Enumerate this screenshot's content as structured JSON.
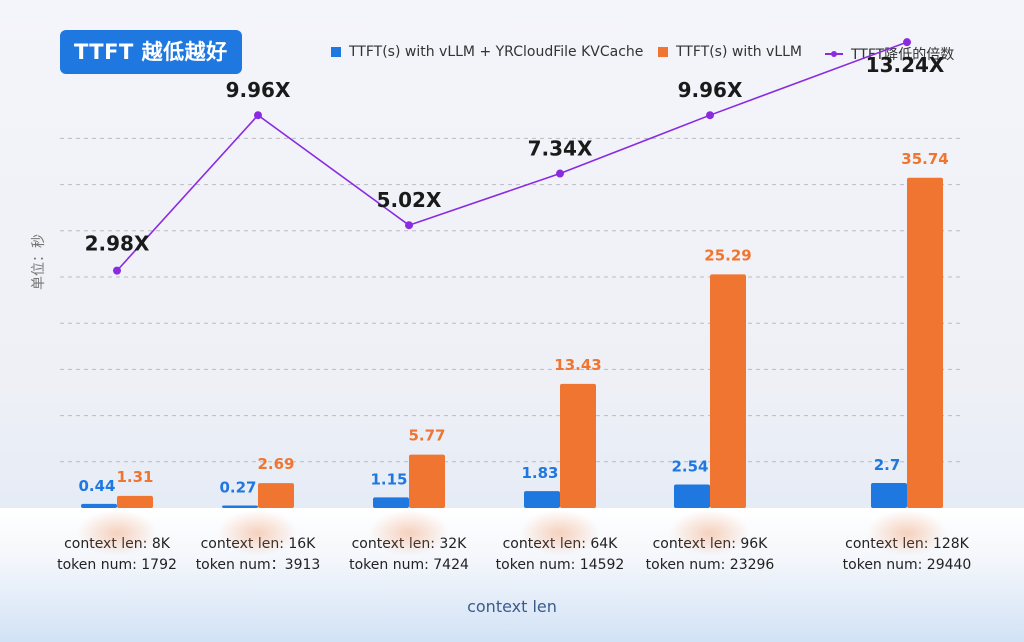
{
  "title": "TTFT 越低越好",
  "legend": {
    "series1": "TTFT(s) with vLLM + YRCloudFile KVCache",
    "series2": "TTFT(s) with vLLM",
    "series3": "TTFT降低的倍数"
  },
  "y_unit": "单位：秒",
  "x_axis_label": "context len",
  "colors": {
    "blue": "#1f78e0",
    "orange": "#ef7530",
    "purple": "#8a2be2",
    "title_bg": "#1f78e0"
  },
  "categories": [
    {
      "line1": "context len: 8K",
      "line2": "token num: 1792"
    },
    {
      "line1": "context len: 16K",
      "line2": "token num：3913"
    },
    {
      "line1": "context len: 32K",
      "line2": "token num: 7424"
    },
    {
      "line1": "context len: 64K",
      "line2": "token num: 14592"
    },
    {
      "line1": "context len: 96K",
      "line2": "token num: 23296"
    },
    {
      "line1": "context len: 128K",
      "line2": "token num: 29440"
    }
  ],
  "chart_data": {
    "type": "bar",
    "title": "TTFT 越低越好",
    "xlabel": "context len",
    "ylabel": "单位：秒",
    "categories": [
      "context len: 8K",
      "context len: 16K",
      "context len: 32K",
      "context len: 64K",
      "context len: 96K",
      "context len: 128K"
    ],
    "series": [
      {
        "name": "TTFT(s) with vLLM + YRCloudFile KVCache",
        "type": "bar",
        "values": [
          0.44,
          0.27,
          1.15,
          1.83,
          2.54,
          2.7
        ],
        "labels": [
          "0.44",
          "0.27",
          "1.15",
          "1.83",
          "2.54",
          "2.7"
        ]
      },
      {
        "name": "TTFT(s) with vLLM",
        "type": "bar",
        "values": [
          1.31,
          2.69,
          5.77,
          13.43,
          25.29,
          35.74
        ],
        "labels": [
          "1.31",
          "2.69",
          "5.77",
          "13.43",
          "25.29",
          "35.74"
        ]
      },
      {
        "name": "TTFT降低的倍数",
        "type": "line",
        "values": [
          2.98,
          9.96,
          5.02,
          7.34,
          9.96,
          13.24
        ],
        "labels": [
          "2.98X",
          "9.96X",
          "5.02X",
          "7.34X",
          "9.96X",
          "13.24X"
        ]
      }
    ],
    "ylim": [
      0,
      40
    ],
    "grid": "dashed-horizontal",
    "legend": "top-right"
  }
}
